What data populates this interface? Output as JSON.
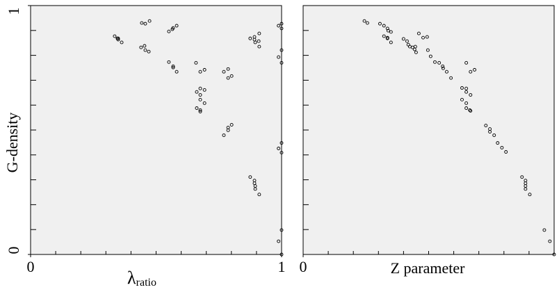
{
  "chart_data": [
    {
      "type": "scatter",
      "ylabel": "G-density",
      "xlabel": "λ",
      "xlabel_subscript": "ratio",
      "xlim": [
        0,
        1
      ],
      "ylim": [
        0,
        1
      ],
      "xticks": [
        0,
        1
      ],
      "yticks": [
        0,
        1
      ],
      "x_minor_ticks": [
        0.1,
        0.2,
        0.3,
        0.4,
        0.5,
        0.6,
        0.7,
        0.8,
        0.9
      ],
      "y_minor_ticks": [
        0.1,
        0.2,
        0.3,
        0.4,
        0.5,
        0.6,
        0.7,
        0.8,
        0.9
      ],
      "color": "#000000",
      "x": [
        0.335,
        0.346,
        0.349,
        0.349,
        0.363,
        0.443,
        0.457,
        0.474,
        0.44,
        0.454,
        0.457,
        0.471,
        0.551,
        0.565,
        0.568,
        0.582,
        0.551,
        0.568,
        0.568,
        0.582,
        0.659,
        0.676,
        0.693,
        0.662,
        0.676,
        0.676,
        0.693,
        0.676,
        0.693,
        0.662,
        0.676,
        0.676,
        0.77,
        0.787,
        0.787,
        0.801,
        0.77,
        0.787,
        0.787,
        0.801,
        0.875,
        0.892,
        0.892,
        0.909,
        0.895,
        0.911,
        0.911,
        0.875,
        0.892,
        0.892,
        0.895,
        0.895,
        0.911,
        0.988,
        1.0,
        1.0,
        1.0,
        0.988,
        1.0,
        0.988,
        1.0,
        1.0,
        0.988,
        1.0,
        1.0
      ],
      "y": [
        0.877,
        0.868,
        0.863,
        0.868,
        0.852,
        0.93,
        0.927,
        0.938,
        0.832,
        0.838,
        0.821,
        0.815,
        0.896,
        0.905,
        0.91,
        0.919,
        0.773,
        0.756,
        0.751,
        0.734,
        0.77,
        0.734,
        0.742,
        0.653,
        0.667,
        0.641,
        0.661,
        0.622,
        0.608,
        0.588,
        0.58,
        0.574,
        0.734,
        0.745,
        0.709,
        0.717,
        0.479,
        0.499,
        0.51,
        0.521,
        0.868,
        0.874,
        0.863,
        0.857,
        0.852,
        0.888,
        0.835,
        0.311,
        0.297,
        0.286,
        0.275,
        0.263,
        0.241,
        0.919,
        0.927,
        0.908,
        0.821,
        0.793,
        0.77,
        0.426,
        0.448,
        0.409,
        0.053,
        0.098,
        0.0
      ]
    },
    {
      "type": "scatter",
      "xlabel": "Z parameter",
      "xlim": [
        0,
        1
      ],
      "ylim": [
        0,
        1
      ],
      "xticks": [
        0
      ],
      "x_minor_ticks": [
        0.1,
        0.2,
        0.3,
        0.4,
        0.5,
        0.6,
        0.7,
        0.8,
        0.9
      ],
      "y_minor_ticks": [
        0.1,
        0.2,
        0.3,
        0.4,
        0.5,
        0.6,
        0.7,
        0.8,
        0.9
      ],
      "color": "#000000",
      "x": [
        0.244,
        0.256,
        0.306,
        0.322,
        0.336,
        0.339,
        0.35,
        0.322,
        0.336,
        0.336,
        0.35,
        0.4,
        0.414,
        0.419,
        0.425,
        0.436,
        0.444,
        0.45,
        0.447,
        0.461,
        0.478,
        0.494,
        0.497,
        0.508,
        0.525,
        0.542,
        0.556,
        0.558,
        0.572,
        0.589,
        0.633,
        0.65,
        0.65,
        0.667,
        0.633,
        0.65,
        0.65,
        0.664,
        0.667,
        0.65,
        0.667,
        0.683,
        0.728,
        0.744,
        0.744,
        0.761,
        0.775,
        0.792,
        0.808,
        0.872,
        0.886,
        0.886,
        0.886,
        0.886,
        0.903,
        0.961,
        0.983,
        1.0
      ],
      "y": [
        0.938,
        0.93,
        0.927,
        0.919,
        0.908,
        0.899,
        0.894,
        0.877,
        0.871,
        0.868,
        0.852,
        0.866,
        0.857,
        0.843,
        0.835,
        0.832,
        0.824,
        0.812,
        0.835,
        0.888,
        0.871,
        0.874,
        0.821,
        0.796,
        0.773,
        0.77,
        0.756,
        0.748,
        0.734,
        0.709,
        0.669,
        0.667,
        0.653,
        0.641,
        0.622,
        0.608,
        0.588,
        0.58,
        0.577,
        0.77,
        0.734,
        0.742,
        0.518,
        0.504,
        0.493,
        0.479,
        0.448,
        0.429,
        0.412,
        0.311,
        0.297,
        0.286,
        0.275,
        0.263,
        0.241,
        0.098,
        0.053,
        0.0
      ]
    }
  ]
}
